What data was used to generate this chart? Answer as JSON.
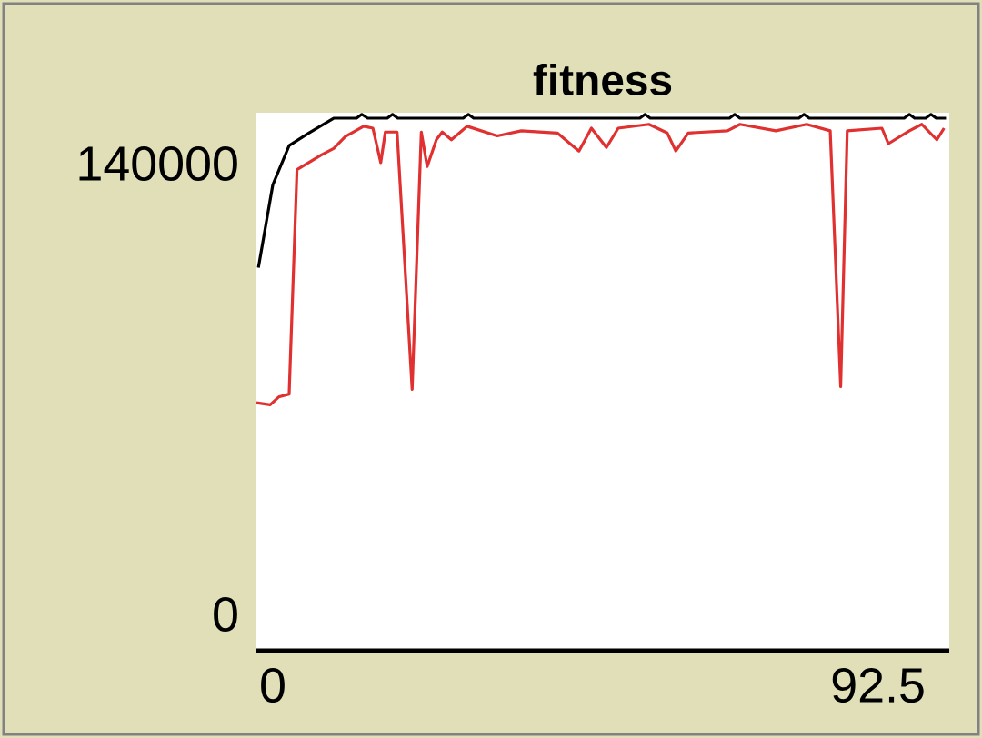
{
  "chart_data": {
    "type": "line",
    "title": "fitness",
    "xlim": [
      -2.5,
      103.4
    ],
    "ylim": [
      -11300,
      155800
    ],
    "xticks": [
      0,
      92.5
    ],
    "yticks": [
      0,
      140000
    ],
    "marker": "none",
    "line_style": "solid",
    "series": [
      {
        "color": "#000000",
        "x": [
          -2.2,
          0.0,
          2.5,
          5.5,
          9.3,
          12.8,
          13.6,
          14.5,
          17.5,
          18.3,
          19.1,
          29.1,
          29.9,
          30.7,
          56.1,
          56.9,
          57.7,
          69.8,
          70.6,
          71.4,
          80.4,
          81.2,
          82.0,
          96.5,
          97.3,
          98.1,
          99.8,
          100.6,
          101.4,
          102.9
        ],
        "values": [
          107700,
          133400,
          145600,
          149500,
          154100,
          154100,
          155300,
          154100,
          154100,
          155300,
          154100,
          154100,
          155300,
          154100,
          154100,
          155300,
          154100,
          154100,
          155300,
          154100,
          154100,
          155300,
          154100,
          154100,
          155300,
          154100,
          154100,
          155300,
          154100,
          154100
        ]
      },
      {
        "color": "#e03030",
        "x": [
          -2.5,
          -0.4,
          0.9,
          2.5,
          3.7,
          7.5,
          9.3,
          11.1,
          13.9,
          15.3,
          16.5,
          17.2,
          19.0,
          21.3,
          22.7,
          23.6,
          25.0,
          25.9,
          27.3,
          29.7,
          34.3,
          38.0,
          43.5,
          46.8,
          48.7,
          51.0,
          52.8,
          57.5,
          60.3,
          61.6,
          63.5,
          69.5,
          71.4,
          76.9,
          81.6,
          85.2,
          86.8,
          87.8,
          93.1,
          94.1,
          97.3,
          99.2,
          101.5,
          102.6
        ],
        "values": [
          65700,
          65100,
          67500,
          68400,
          138100,
          142800,
          144700,
          148400,
          151600,
          151000,
          140300,
          149800,
          149800,
          69900,
          149800,
          139100,
          147400,
          149800,
          147400,
          151600,
          148600,
          150200,
          149500,
          143900,
          151000,
          145000,
          151000,
          152200,
          149500,
          143900,
          149500,
          150200,
          152200,
          150200,
          152200,
          150200,
          70700,
          150200,
          151000,
          146200,
          150200,
          152200,
          147400,
          151000
        ]
      }
    ]
  }
}
